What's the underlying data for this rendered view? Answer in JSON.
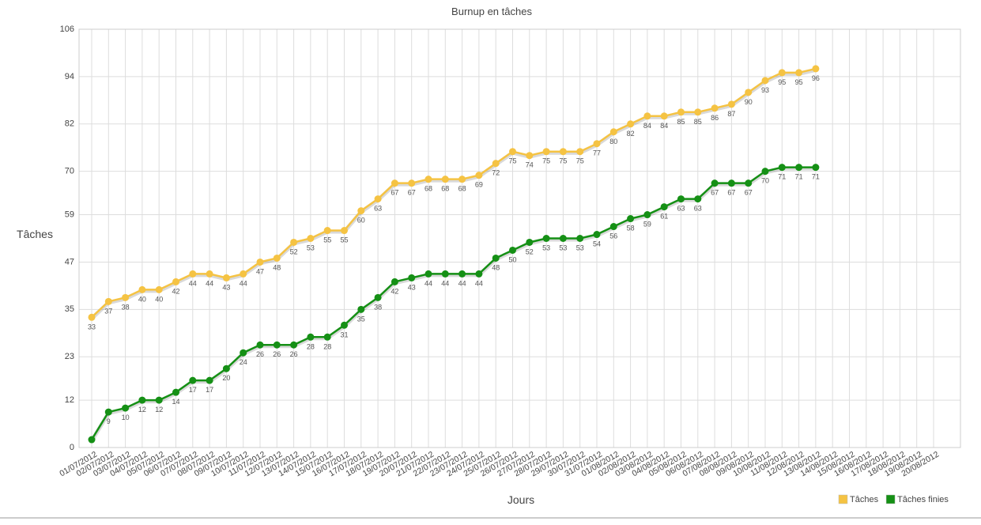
{
  "chart_data": {
    "type": "line",
    "title": "Burnup en tâches",
    "xlabel": "Jours",
    "ylabel": "Tâches",
    "grid": true,
    "legend": "bottom-right",
    "ylim": [
      0,
      106
    ],
    "yticks": [
      0,
      12,
      23,
      35,
      47,
      59,
      70,
      82,
      94,
      106
    ],
    "categories": [
      "01/07/2012",
      "02/07/2012",
      "03/07/2012",
      "04/07/2012",
      "05/07/2012",
      "06/07/2012",
      "07/07/2012",
      "08/07/2012",
      "09/07/2012",
      "10/07/2012",
      "11/07/2012",
      "12/07/2012",
      "13/07/2012",
      "14/07/2012",
      "15/07/2012",
      "16/07/2012",
      "17/07/2012",
      "18/07/2012",
      "19/07/2012",
      "20/07/2012",
      "21/07/2012",
      "22/07/2012",
      "23/07/2012",
      "24/07/2012",
      "25/07/2012",
      "26/07/2012",
      "27/07/2012",
      "28/07/2012",
      "29/07/2012",
      "30/07/2012",
      "31/07/2012",
      "01/08/2012",
      "02/08/2012",
      "03/08/2012",
      "04/08/2012",
      "05/08/2012",
      "06/08/2012",
      "07/08/2012",
      "08/08/2012",
      "09/08/2012",
      "10/08/2012",
      "11/08/2012",
      "12/08/2012",
      "13/08/2012",
      "14/08/2012",
      "15/08/2012",
      "16/08/2012",
      "17/08/2012",
      "18/08/2012",
      "19/08/2012",
      "20/08/2012"
    ],
    "series": [
      {
        "name": "Tâches",
        "color": "#f5c343",
        "values": [
          33,
          37,
          38,
          40,
          40,
          42,
          44,
          44,
          43,
          44,
          47,
          48,
          52,
          53,
          55,
          55,
          60,
          63,
          67,
          67,
          68,
          68,
          68,
          69,
          72,
          75,
          74,
          75,
          75,
          75,
          77,
          80,
          82,
          84,
          84,
          85,
          85,
          86,
          87,
          90,
          93,
          95,
          95,
          96,
          null,
          null,
          null,
          null,
          null,
          null,
          null
        ]
      },
      {
        "name": "Tâches finies",
        "color": "#159015",
        "values": [
          2,
          9,
          10,
          12,
          12,
          14,
          17,
          17,
          20,
          24,
          26,
          26,
          26,
          28,
          28,
          31,
          35,
          38,
          42,
          43,
          44,
          44,
          44,
          44,
          48,
          50,
          52,
          53,
          53,
          53,
          54,
          56,
          58,
          59,
          61,
          63,
          63,
          67,
          67,
          67,
          70,
          71,
          71,
          71,
          null,
          null,
          null,
          null,
          null,
          null,
          null
        ],
        "value_labels": [
          null,
          "9",
          "10",
          "12",
          "12",
          "14",
          "17",
          "17",
          "20",
          "24",
          "26",
          "26",
          "26",
          "28",
          "28",
          "31",
          "35",
          "38",
          "42",
          "43",
          "44",
          "44",
          "44",
          "44",
          "48",
          "50",
          "52",
          "53",
          "53",
          "53",
          "54",
          "56",
          "58",
          "59",
          "61",
          "63",
          "63",
          "67",
          "67",
          "67",
          "70",
          "71",
          "71",
          "71",
          null,
          null,
          null,
          null,
          null,
          null,
          null
        ]
      }
    ]
  }
}
